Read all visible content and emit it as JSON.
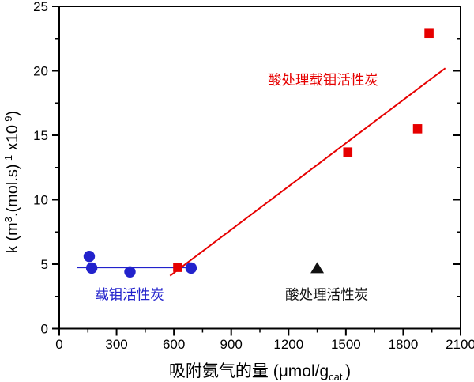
{
  "chart_data": {
    "type": "scatter",
    "title": "",
    "xlabel_parts": [
      "吸附氨气的量 (μmol/g",
      "cat.",
      ")"
    ],
    "ylabel_parts": [
      "k (m",
      "3",
      ".(mol.s)",
      "-1",
      " x10",
      "-9",
      ")"
    ],
    "xlim": [
      0,
      2100
    ],
    "ylim": [
      0,
      25
    ],
    "x_major_ticks": [
      0,
      300,
      600,
      900,
      1200,
      1500,
      1800,
      2100
    ],
    "x_minor_step": 150,
    "y_major_ticks": [
      0,
      5,
      10,
      15,
      20,
      25
    ],
    "y_minor_step": 2.5,
    "grid": false,
    "legend_position": "inline-annotations",
    "series": [
      {
        "id": "mo-activated-carbon",
        "name": "载钼活性炭",
        "marker": "circle",
        "color": "#2222cc",
        "points": [
          [
            157,
            5.6
          ],
          [
            170,
            4.7
          ],
          [
            370,
            4.4
          ],
          [
            690,
            4.7
          ]
        ],
        "fit_line": {
          "from": [
            95,
            4.75
          ],
          "to": [
            700,
            4.75
          ]
        }
      },
      {
        "id": "acid-treated-mo-activated-carbon",
        "name": "酸处理载钼活性炭",
        "marker": "square",
        "color": "#e60000",
        "points": [
          [
            620,
            4.75
          ],
          [
            1510,
            13.7
          ],
          [
            1875,
            15.5
          ],
          [
            1935,
            22.9
          ]
        ],
        "fit_line": {
          "from": [
            580,
            4.1
          ],
          "to": [
            2020,
            20.2
          ]
        }
      },
      {
        "id": "acid-treated-activated-carbon",
        "name": "酸处理活性炭",
        "marker": "triangle",
        "color": "#111111",
        "points": [
          [
            1350,
            4.7
          ]
        ]
      }
    ],
    "annotations": [
      {
        "id": "label-acid-mo",
        "text": "酸处理载钼活性炭",
        "color": "#e60000",
        "x": 1380,
        "y": 19.3
      },
      {
        "id": "label-mo",
        "text": "载钼活性炭",
        "color": "#2222cc",
        "x": 368,
        "y": 2.65
      },
      {
        "id": "label-acid",
        "text": "酸处理活性炭",
        "color": "#111111",
        "x": 1400,
        "y": 2.65
      }
    ]
  },
  "colors": {
    "axis": "#000000",
    "background": "#ffffff",
    "blue": "#2222cc",
    "red": "#e60000",
    "black": "#111111"
  }
}
